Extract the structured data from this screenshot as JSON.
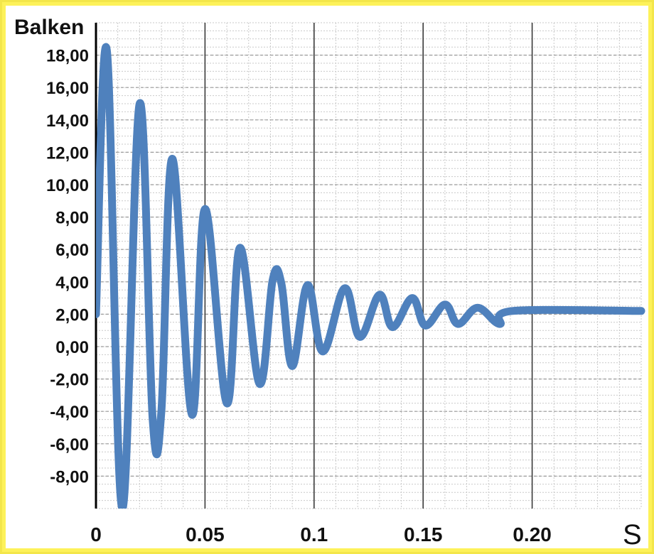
{
  "chart_data": {
    "type": "line",
    "ylabel": "Balken",
    "xlabel": "S",
    "xlim": [
      0,
      0.25
    ],
    "ylim": [
      -10,
      20
    ],
    "x_ticks": [
      {
        "value": 0,
        "label": "0"
      },
      {
        "value": 0.05,
        "label": "0.05"
      },
      {
        "value": 0.1,
        "label": "0.1"
      },
      {
        "value": 0.15,
        "label": "0.15"
      },
      {
        "value": 0.2,
        "label": "0.20"
      }
    ],
    "y_ticks": [
      {
        "value": 18,
        "label": "18,00"
      },
      {
        "value": 16,
        "label": "16,00"
      },
      {
        "value": 14,
        "label": "14,00"
      },
      {
        "value": 12,
        "label": "12,00"
      },
      {
        "value": 10,
        "label": "10,00"
      },
      {
        "value": 8,
        "label": "8,00"
      },
      {
        "value": 6,
        "label": "6,00"
      },
      {
        "value": 4,
        "label": "4,00"
      },
      {
        "value": 2,
        "label": "2,00"
      },
      {
        "value": 0,
        "label": "0,00"
      },
      {
        "value": -2,
        "label": "-2,00"
      },
      {
        "value": -4,
        "label": "-4,00"
      },
      {
        "value": -6,
        "label": "-6,00"
      },
      {
        "value": -8,
        "label": "-8,00"
      }
    ],
    "grid": true,
    "series": [
      {
        "color": "#4f81bd",
        "points": [
          [
            0,
            2.0
          ],
          [
            0.005,
            18.3
          ],
          [
            0.012,
            -10.0
          ],
          [
            0.02,
            15.0
          ],
          [
            0.026,
            -4.5
          ],
          [
            0.03,
            -4.0
          ],
          [
            0.035,
            11.6
          ],
          [
            0.044,
            -4.2
          ],
          [
            0.05,
            8.5
          ],
          [
            0.06,
            -3.5
          ],
          [
            0.066,
            6.1
          ],
          [
            0.075,
            -2.3
          ],
          [
            0.081,
            4.1
          ],
          [
            0.085,
            3.9
          ],
          [
            0.09,
            -1.2
          ],
          [
            0.097,
            3.8
          ],
          [
            0.104,
            -0.3
          ],
          [
            0.114,
            3.6
          ],
          [
            0.121,
            0.6
          ],
          [
            0.13,
            3.2
          ],
          [
            0.136,
            1.2
          ],
          [
            0.145,
            3.0
          ],
          [
            0.151,
            1.3
          ],
          [
            0.16,
            2.6
          ],
          [
            0.166,
            1.4
          ],
          [
            0.175,
            2.4
          ],
          [
            0.185,
            1.4
          ],
          [
            0.191,
            2.2
          ],
          [
            0.25,
            2.2
          ]
        ]
      }
    ]
  }
}
